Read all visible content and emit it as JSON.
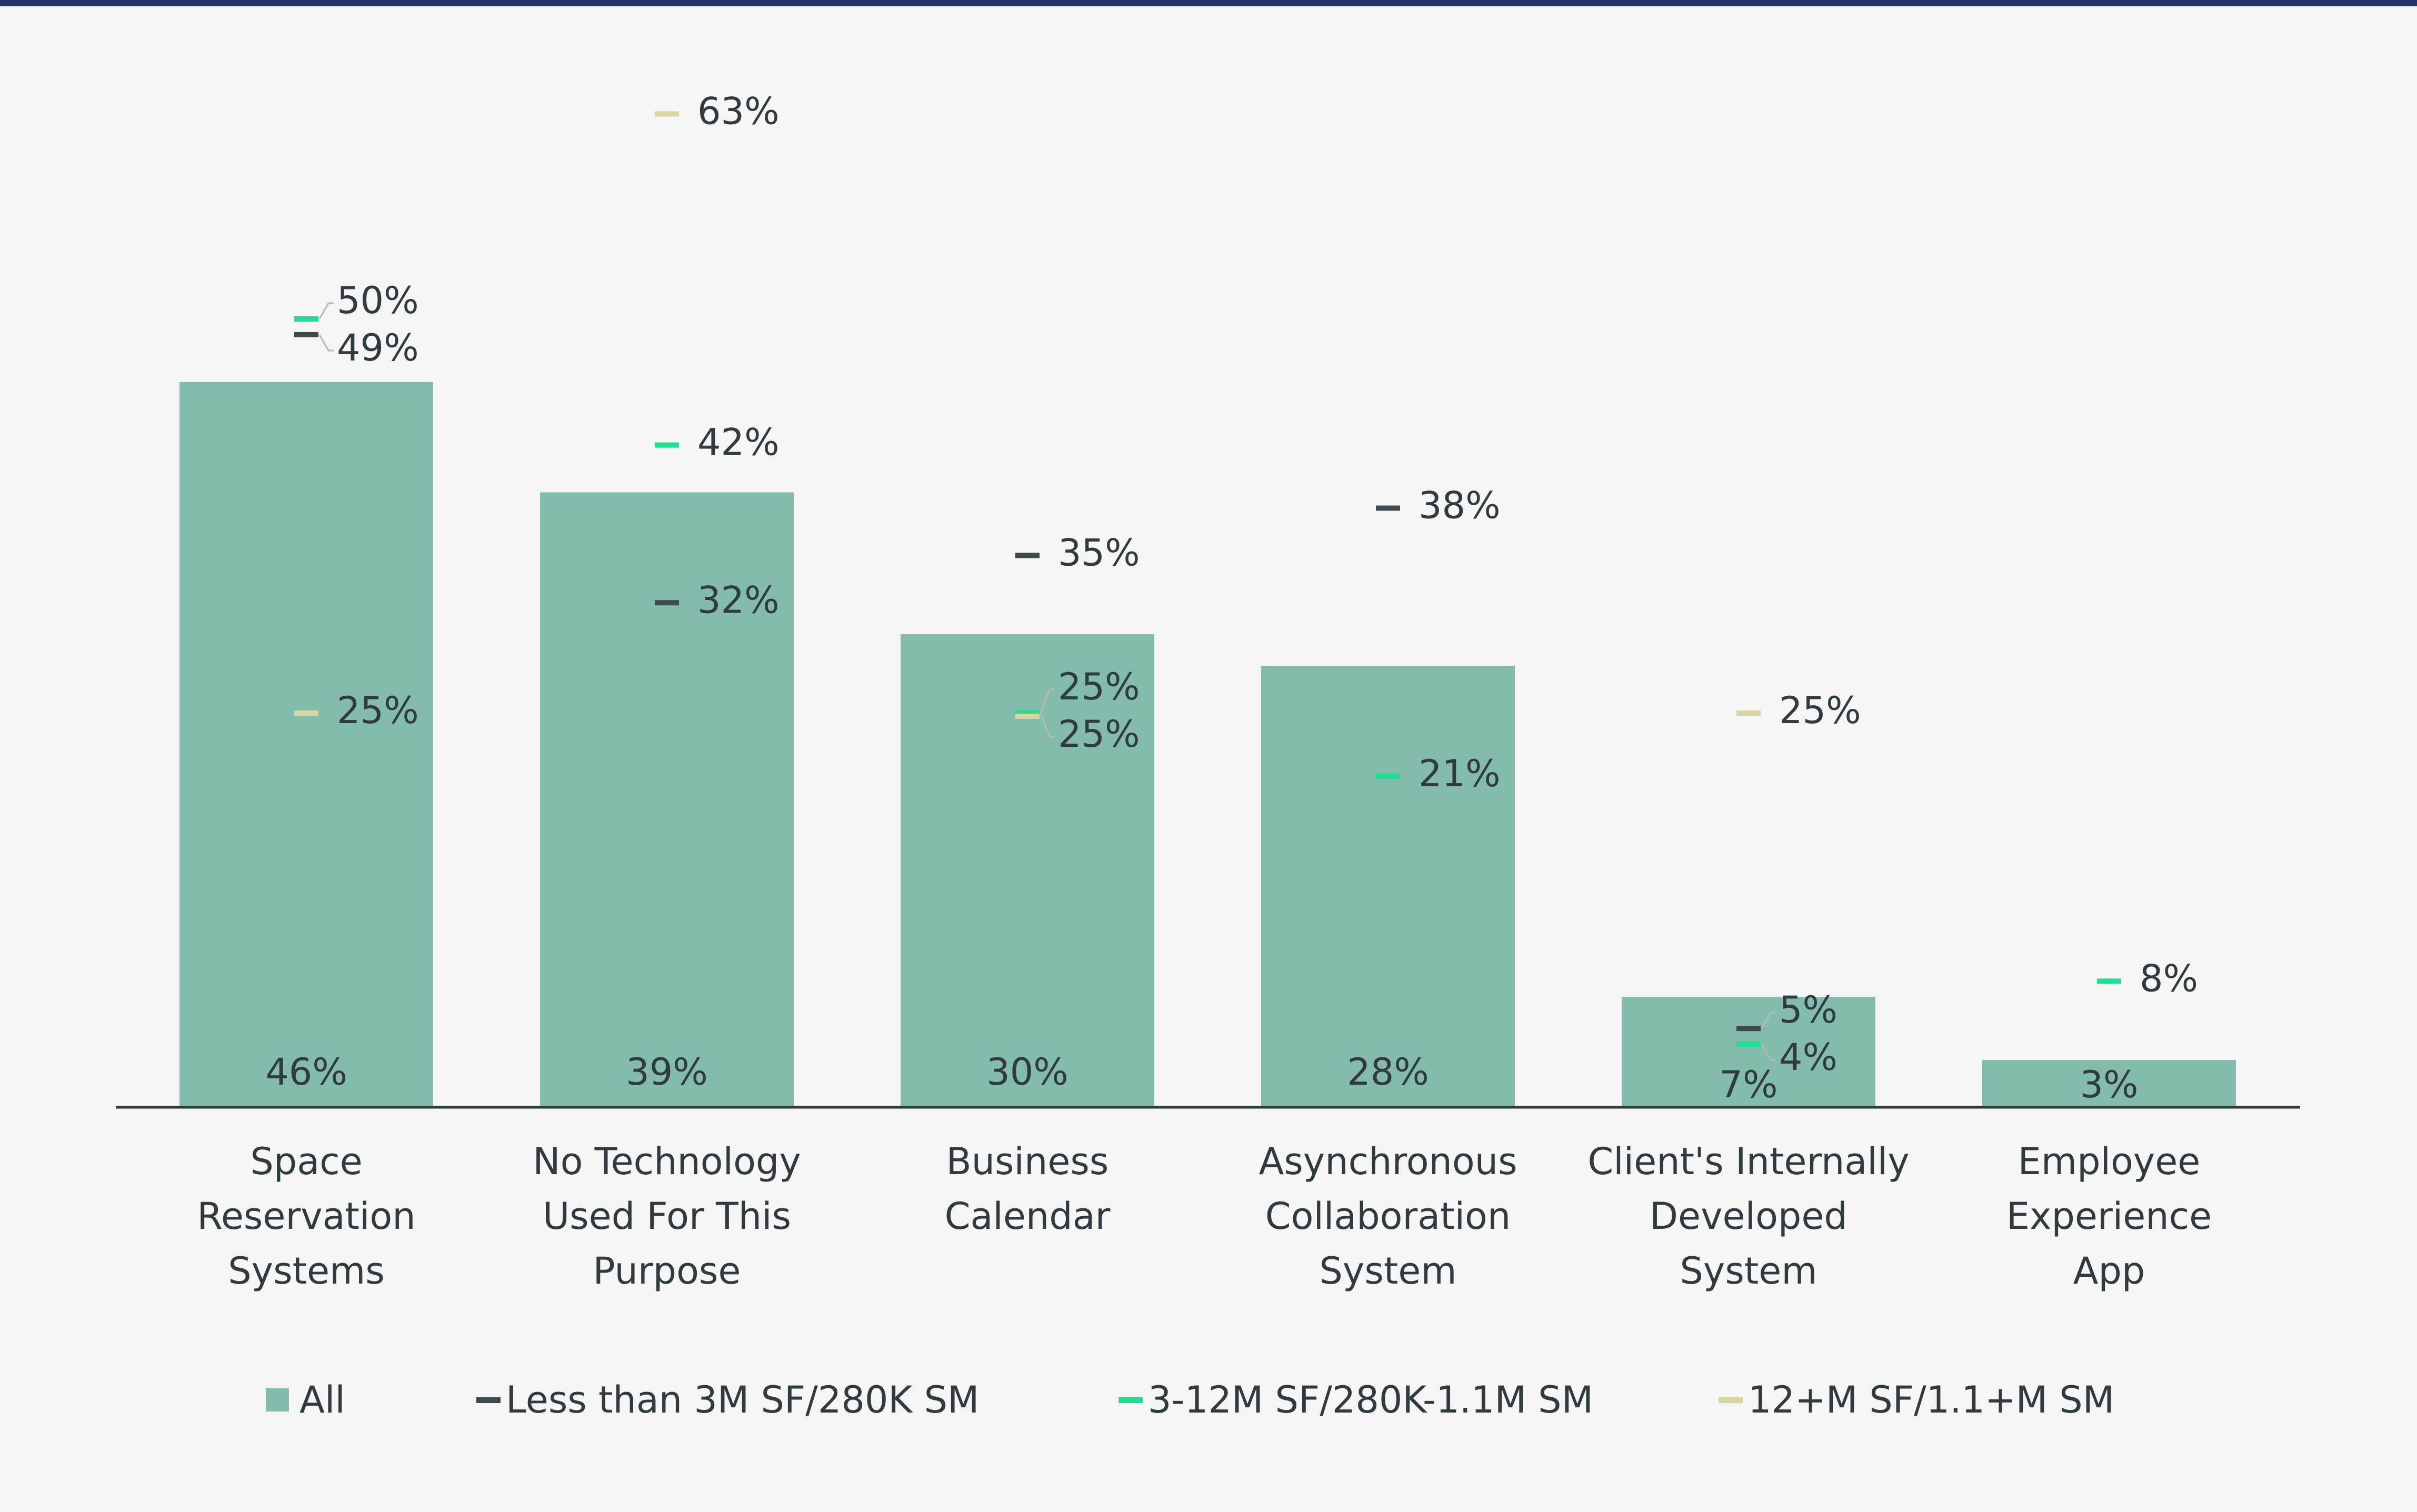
{
  "colors": {
    "background": "#f4f5f4",
    "top_rule": "#1f3566",
    "bar": "#83bbad",
    "axis": "#2f3b3f",
    "text": "#2f3b3f",
    "leader": "#b5b9b9"
  },
  "legend": [
    {
      "label": "All",
      "marker": "box",
      "color": "#83bbad"
    },
    {
      "label": "Less than 3M SF/280K SM",
      "marker": "dash",
      "color": "#3d4a4d"
    },
    {
      "label": "3-12M SF/280K-1.1M SM",
      "marker": "dash",
      "color": "#1fe08e"
    },
    {
      "label": "12+M SF/1.1+M SM",
      "marker": "dash",
      "color": "#d9d6a2"
    }
  ],
  "chart_data": {
    "type": "bar",
    "categories": [
      "Space Reservation Systems",
      "No Technology Used For This Purpose",
      "Business Calendar",
      "Asynchronous Collaboration System",
      "Client's Internally Developed System",
      "Employee Experience App"
    ],
    "category_lines": [
      [
        "Space",
        "Reservation",
        "Systems"
      ],
      [
        "No Technology",
        "Used For This",
        "Purpose"
      ],
      [
        "Business",
        "Calendar"
      ],
      [
        "Asynchronous",
        "Collaboration",
        "System"
      ],
      [
        "Client's Internally",
        "Developed",
        "System"
      ],
      [
        "Employee",
        "Experience",
        "App"
      ]
    ],
    "ylim": [
      0,
      70
    ],
    "series": [
      {
        "name": "All",
        "mark": "bar",
        "color": "#83bbad",
        "values": [
          46,
          39,
          30,
          28,
          7,
          3
        ],
        "labels": [
          "46%",
          "39%",
          "30%",
          "28%",
          "7%",
          "3%"
        ]
      },
      {
        "name": "Less than 3M SF/280K SM",
        "mark": "dash",
        "color": "#3d4a4d",
        "values": [
          49,
          32,
          35,
          38,
          5,
          null
        ],
        "labels": [
          "49%",
          "32%",
          "35%",
          "38%",
          "5%",
          null
        ]
      },
      {
        "name": "3-12M SF/280K-1.1M SM",
        "mark": "dash",
        "color": "#1fe08e",
        "values": [
          50,
          42,
          25,
          21,
          4,
          8
        ],
        "labels": [
          "50%",
          "42%",
          "25%",
          "21%",
          "4%",
          "8%"
        ]
      },
      {
        "name": "12+M SF/1.1+M SM",
        "mark": "dash",
        "color": "#d9d6a2",
        "values": [
          25,
          63,
          25,
          null,
          25,
          null
        ],
        "labels": [
          "25%",
          "63%",
          "25%",
          null,
          "25%",
          null
        ]
      }
    ],
    "grid": false
  }
}
